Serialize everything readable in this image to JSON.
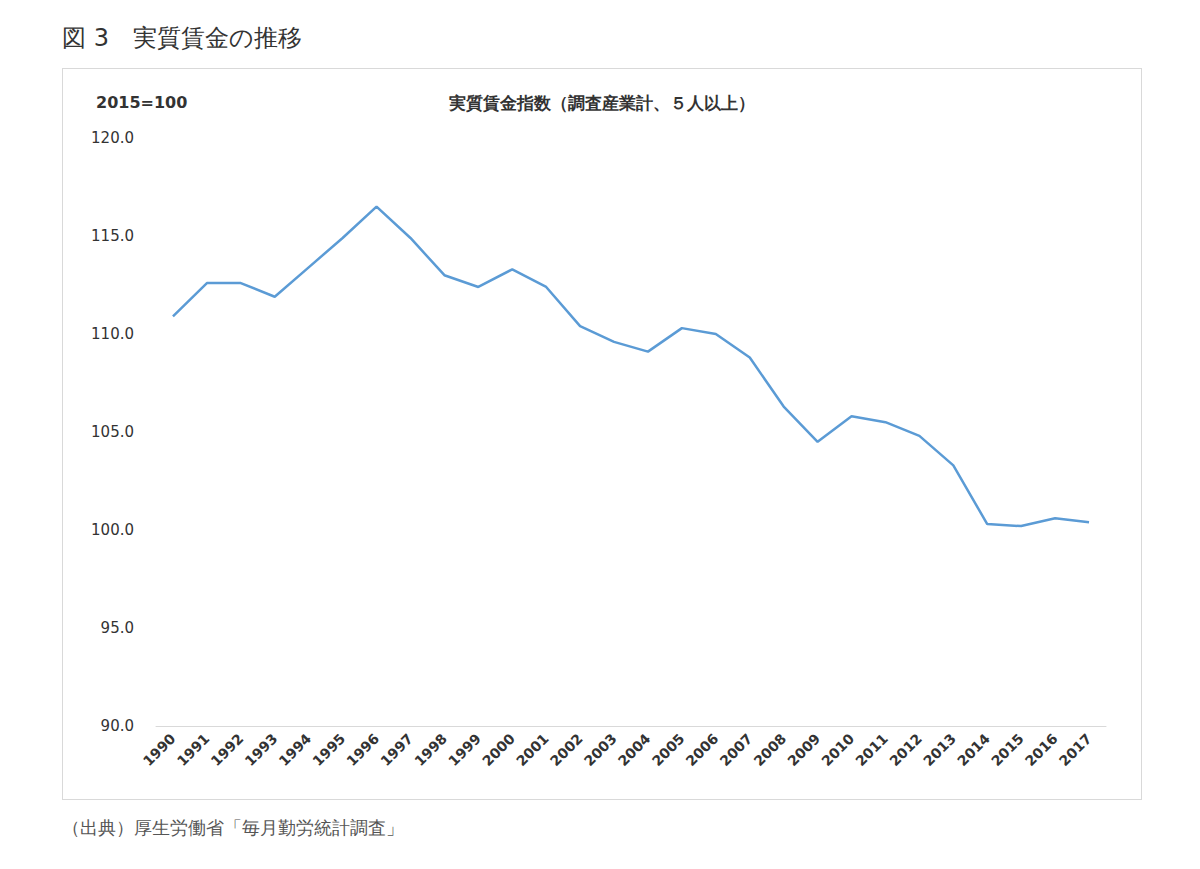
{
  "chart_data": {
    "type": "line",
    "title": "図 3　実質賃金の推移",
    "subtitle": "実質賃金指数（調査産業計、５人以上）",
    "ylabel": "2015=100",
    "source": "（出典）厚生労働省「毎月勤労統計調査」",
    "categories": [
      "1990",
      "1991",
      "1992",
      "1993",
      "1994",
      "1995",
      "1996",
      "1997",
      "1998",
      "1999",
      "2000",
      "2001",
      "2002",
      "2003",
      "2004",
      "2005",
      "2006",
      "2007",
      "2008",
      "2009",
      "2010",
      "2011",
      "2012",
      "2013",
      "2014",
      "2015",
      "2016",
      "2017"
    ],
    "values": [
      110.9,
      112.6,
      112.6,
      111.9,
      113.4,
      114.9,
      116.5,
      114.9,
      113.0,
      112.4,
      113.3,
      112.4,
      110.4,
      109.6,
      109.1,
      110.3,
      110.0,
      108.8,
      106.3,
      104.5,
      105.8,
      105.5,
      104.8,
      103.3,
      100.3,
      100.2,
      100.6,
      100.4
    ],
    "color": "#5b9bd5",
    "ylim": [
      90,
      120
    ],
    "yticks": [
      {
        "value": 90,
        "label": "90.0"
      },
      {
        "value": 95,
        "label": "95.0"
      },
      {
        "value": 100,
        "label": "100.0"
      },
      {
        "value": 105,
        "label": "105.0"
      },
      {
        "value": 110,
        "label": "110.0"
      },
      {
        "value": 115,
        "label": "115.0"
      },
      {
        "value": 120,
        "label": "120.0"
      }
    ],
    "grid": false
  }
}
